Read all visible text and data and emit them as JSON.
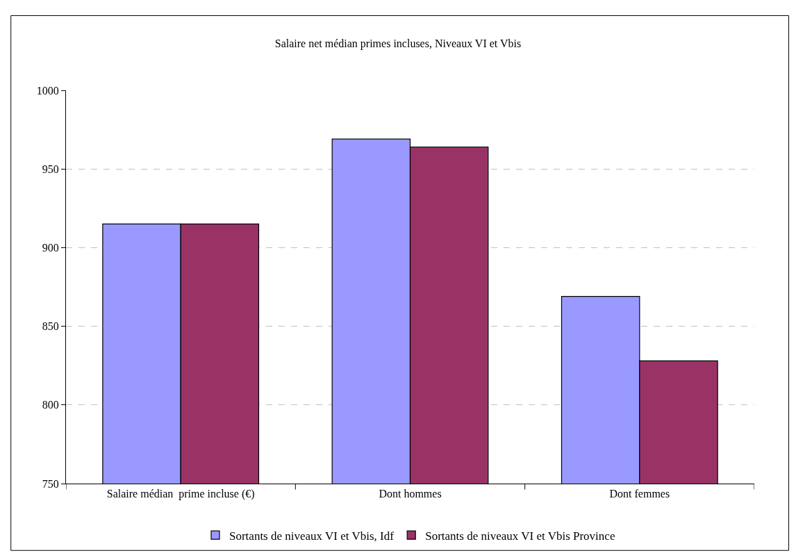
{
  "chart_data": {
    "type": "bar",
    "title": "Salaire net médian primes incluses, Niveaux VI et Vbis",
    "categories": [
      "Salaire médian  prime incluse (€)",
      "Dont hommes",
      "Dont femmes"
    ],
    "series": [
      {
        "name": "Sortants de niveaux VI et Vbis, Idf",
        "color": "#9999ff",
        "values": [
          915,
          969,
          869
        ]
      },
      {
        "name": "Sortants de niveaux VI et Vbis Province",
        "color": "#993366",
        "values": [
          915,
          964,
          828
        ]
      }
    ],
    "ylim": [
      750,
      1000
    ],
    "yticks": [
      750,
      800,
      850,
      900,
      950,
      1000
    ],
    "grid": "y",
    "legend": "bottom"
  }
}
